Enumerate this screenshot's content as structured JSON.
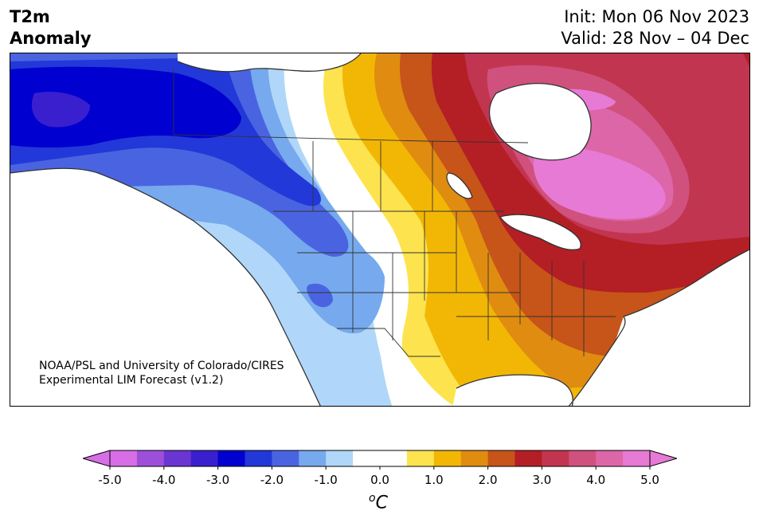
{
  "header": {
    "title_line1": "T2m",
    "title_line2": "Anomaly",
    "init_text": "Init: Mon 06 Nov 2023",
    "valid_text": "Valid: 28 Nov – 04 Dec"
  },
  "credit": {
    "line1": "NOAA/PSL and University of Colorado/CIRES",
    "line2": "Experimental LIM Forecast (v1.2)"
  },
  "colorbar": {
    "units_sup": "o",
    "units_main": "C",
    "tick_labels": [
      "-5.0",
      "-4.0",
      "-3.0",
      "-2.0",
      "-1.0",
      "0.0",
      "1.0",
      "2.0",
      "3.0",
      "4.0",
      "5.0"
    ],
    "bins": [
      "#d86ee6",
      "#9d4fd9",
      "#6b35d2",
      "#3a1fcf",
      "#0000d0",
      "#2338d8",
      "#4a64e1",
      "#76a9ee",
      "#b0d7f9",
      "#ffffff",
      "#ffffff",
      "#fde34e",
      "#f2b705",
      "#e08c10",
      "#c75418",
      "#b31f25",
      "#c23550",
      "#d0517e",
      "#dc66a8",
      "#e77ad4"
    ],
    "extend_low": "#d86ee6",
    "extend_high": "#e77ad4"
  },
  "map": {
    "region": "North America",
    "palette": {
      "ocean": "#ffffff",
      "deep_blue": "#0000d0",
      "blue": "#2338d8",
      "mid_blue": "#4a64e1",
      "light_blue": "#76a9ee",
      "pale_blue": "#b0d7f9",
      "yellow": "#fde34e",
      "gold": "#f2b705",
      "orange": "#e08c10",
      "dark_orange": "#c75418",
      "red": "#b31f25",
      "crimson": "#c23550",
      "rose": "#d0517e",
      "pink": "#dc66a8",
      "magenta": "#e77ad4",
      "purple": "#3a1fcf",
      "border": "#333333"
    }
  }
}
